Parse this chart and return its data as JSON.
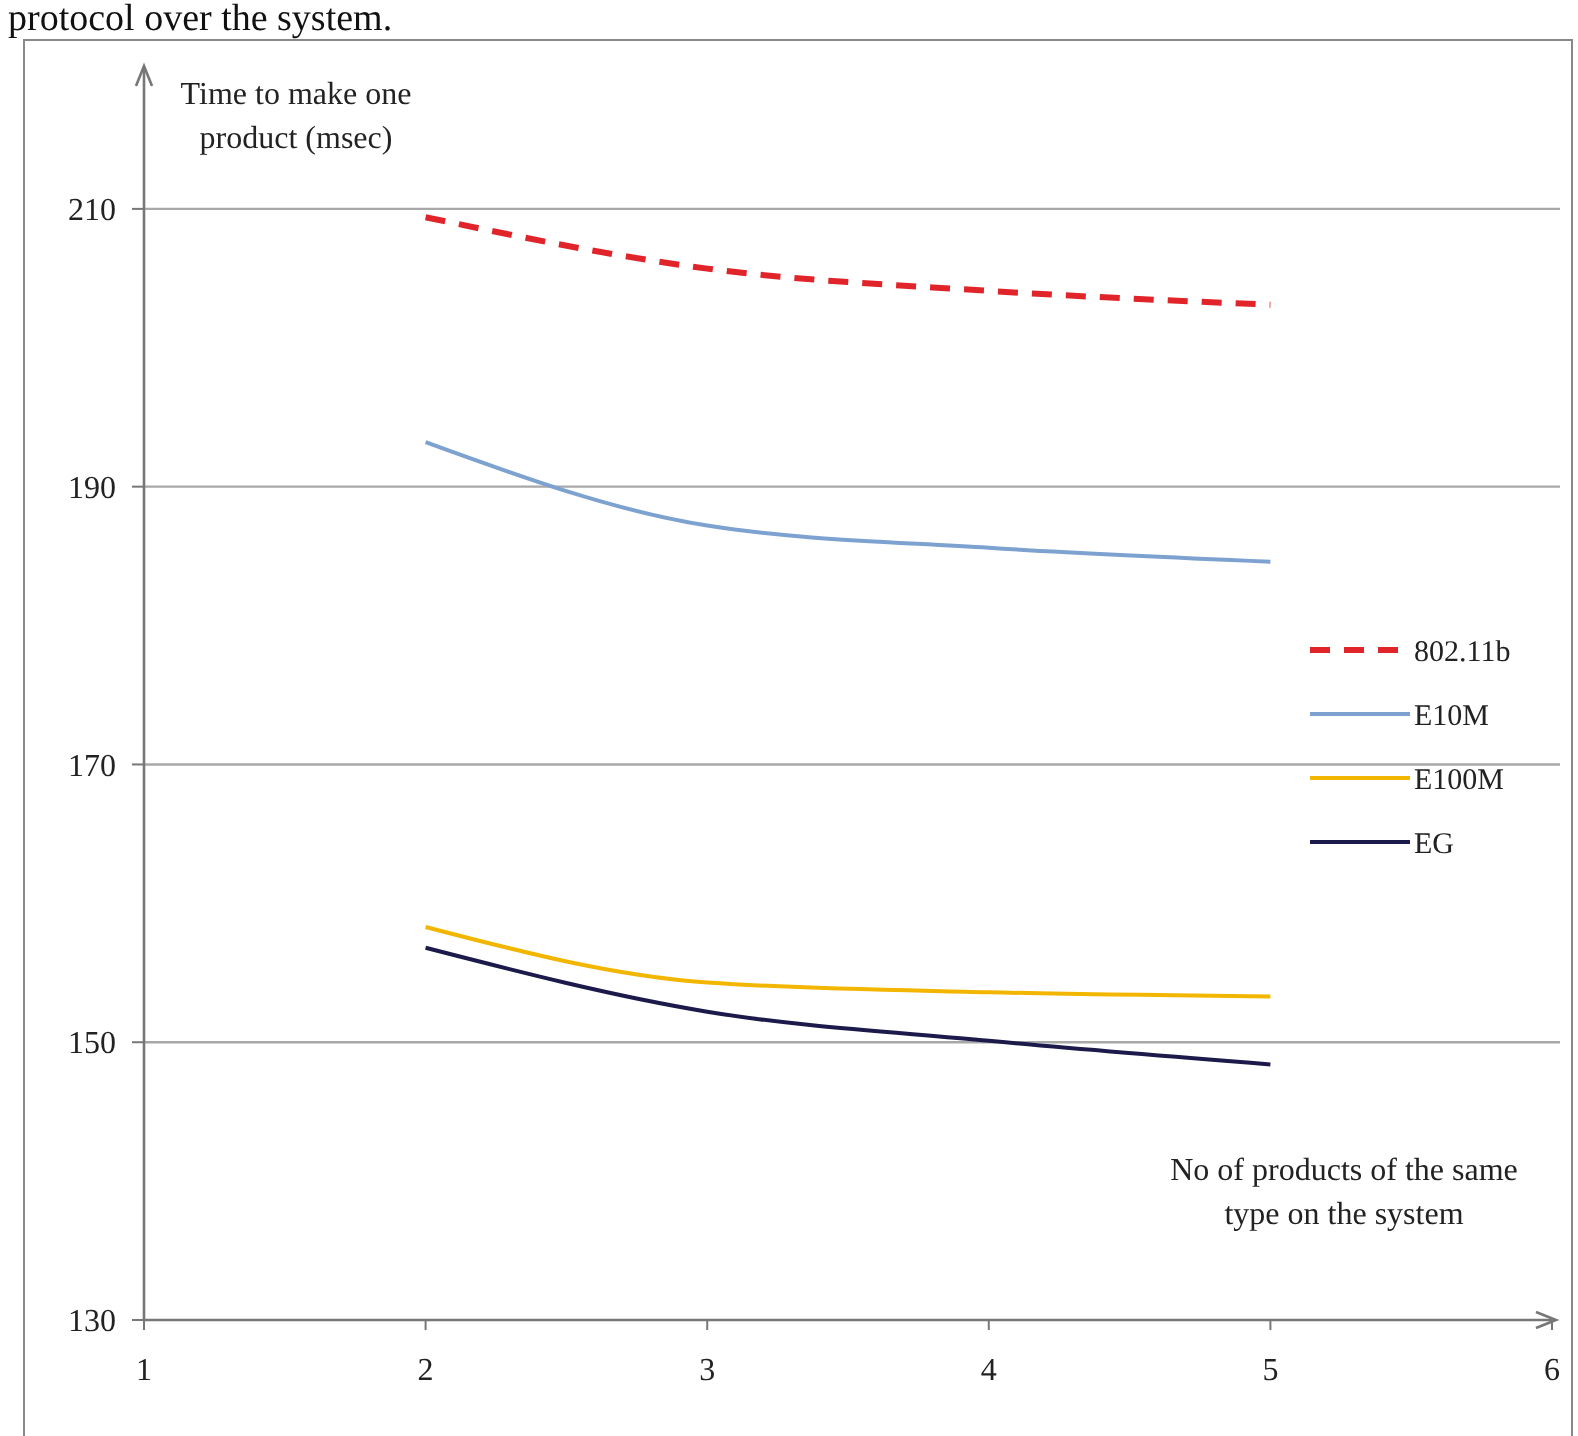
{
  "chart_data": {
    "type": "line",
    "ylabel": "Time to make one product (msec)",
    "xlabel": "No of products of the same type on the system",
    "annotations": [
      "protocol over the system."
    ],
    "x": [
      2,
      3,
      4,
      5
    ],
    "series": [
      {
        "name": "802.11b",
        "color": "#e0242a",
        "values": [
          209.4,
          205.7,
          204.1,
          203.1
        ],
        "line_style": "dashed"
      },
      {
        "name": "E10M",
        "color": "#7ea2d0",
        "values": [
          193.2,
          187.2,
          185.6,
          184.6
        ]
      },
      {
        "name": "E100M",
        "color": "#f2b600",
        "values": [
          158.3,
          154.3,
          153.6,
          153.3
        ]
      },
      {
        "name": "EG",
        "color": "#1c1a4a",
        "values": [
          156.8,
          152.2,
          150.1,
          148.4
        ]
      }
    ],
    "xlim": [
      1,
      6
    ],
    "xticks": [
      1,
      2,
      3,
      4,
      5,
      6
    ],
    "ylim": [
      130,
      220
    ],
    "yticks": [
      130,
      150,
      170,
      190,
      210
    ],
    "grid": "y",
    "legend": "right",
    "marker": "none"
  }
}
